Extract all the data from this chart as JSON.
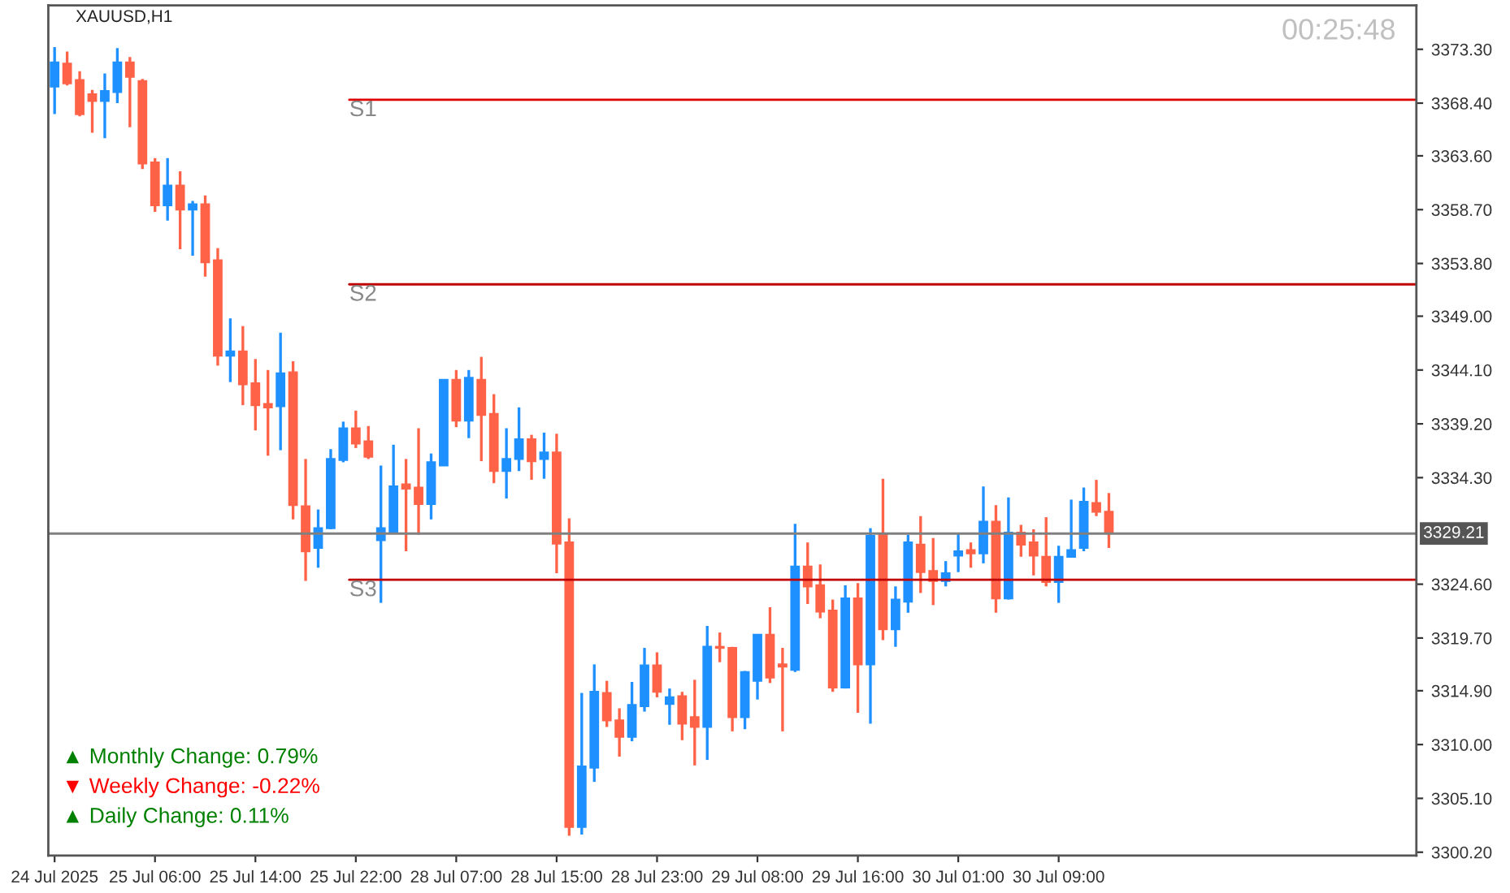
{
  "chart_data": {
    "type": "candlestick",
    "title": "XAUUSD,H1",
    "categories": [
      "24 Jul 2025",
      null,
      null,
      null,
      null,
      null,
      null,
      null,
      "25 Jul 06:00",
      null,
      null,
      null,
      null,
      null,
      null,
      null,
      "25 Jul 14:00",
      null,
      null,
      null,
      null,
      null,
      null,
      null,
      "25 Jul 22:00",
      null,
      null,
      null,
      null,
      null,
      null,
      null,
      "28 Jul 07:00",
      null,
      null,
      null,
      null,
      null,
      null,
      null,
      "28 Jul 15:00",
      null,
      null,
      null,
      null,
      null,
      null,
      null,
      "28 Jul 23:00",
      null,
      null,
      null,
      null,
      null,
      null,
      null,
      "29 Jul 08:00",
      null,
      null,
      null,
      null,
      null,
      null,
      null,
      "29 Jul 16:00",
      null,
      null,
      null,
      null,
      null,
      null,
      null,
      "30 Jul 01:00",
      null,
      null,
      null,
      null,
      null,
      null,
      null,
      "30 Jul 09:00",
      null,
      null,
      null,
      null,
      null,
      null,
      null,
      null,
      null,
      null,
      null,
      null,
      null,
      null,
      null,
      null,
      null,
      null,
      null,
      null,
      null,
      null,
      null,
      null,
      null,
      null,
      null,
      null
    ],
    "ohlc": [
      [
        3369.9,
        3373.5,
        3367.4,
        3372.1
      ],
      [
        3372.0,
        3373.1,
        3370.0,
        3370.2
      ],
      [
        3370.5,
        3371.3,
        3367.2,
        3367.4
      ],
      [
        3369.2,
        3369.6,
        3365.7,
        3368.6
      ],
      [
        3368.6,
        3371.1,
        3365.2,
        3369.5
      ],
      [
        3369.4,
        3373.4,
        3368.4,
        3372.1
      ],
      [
        3372.1,
        3372.6,
        3366.2,
        3370.8
      ],
      [
        3370.4,
        3370.6,
        3362.4,
        3362.9
      ],
      [
        3363.0,
        3363.4,
        3358.5,
        3359.1
      ],
      [
        3359.1,
        3363.4,
        3357.7,
        3360.9
      ],
      [
        3360.9,
        3362.2,
        3355.1,
        3358.7
      ],
      [
        3358.7,
        3359.5,
        3354.5,
        3359.2
      ],
      [
        3359.2,
        3360.0,
        3352.6,
        3353.9
      ],
      [
        3354.1,
        3355.2,
        3344.5,
        3345.4
      ],
      [
        3345.4,
        3348.8,
        3343.0,
        3345.8
      ],
      [
        3345.8,
        3348.1,
        3340.9,
        3342.8
      ],
      [
        3342.9,
        3345.1,
        3338.6,
        3340.9
      ],
      [
        3341.0,
        3344.1,
        3336.3,
        3340.7
      ],
      [
        3340.8,
        3347.5,
        3336.8,
        3343.8
      ],
      [
        3343.9,
        3344.9,
        3330.5,
        3331.8
      ],
      [
        3331.7,
        3336.0,
        3324.9,
        3327.6
      ],
      [
        3327.9,
        3331.4,
        3326.1,
        3329.7
      ],
      [
        3329.7,
        3336.9,
        3329.6,
        3336.0
      ],
      [
        3335.9,
        3339.4,
        3335.7,
        3338.8
      ],
      [
        3338.8,
        3340.4,
        3337.0,
        3337.4
      ],
      [
        3337.6,
        3339.0,
        3336.0,
        3336.2
      ],
      [
        3328.6,
        3335.4,
        3322.9,
        3329.7
      ],
      [
        3329.3,
        3337.3,
        3329.3,
        3333.5
      ],
      [
        3333.7,
        3336.0,
        3327.6,
        3333.3
      ],
      [
        3333.4,
        3338.8,
        3329.1,
        3331.9
      ],
      [
        3331.9,
        3336.5,
        3330.5,
        3335.7
      ],
      [
        3335.4,
        3343.2,
        3335.4,
        3343.2
      ],
      [
        3343.2,
        3344.1,
        3338.9,
        3339.5
      ],
      [
        3339.5,
        3344.1,
        3337.9,
        3343.4
      ],
      [
        3343.2,
        3345.3,
        3335.8,
        3340.0
      ],
      [
        3340.1,
        3341.9,
        3333.8,
        3334.9
      ],
      [
        3334.9,
        3338.8,
        3332.4,
        3336.0
      ],
      [
        3336.0,
        3340.7,
        3334.9,
        3337.8
      ],
      [
        3337.8,
        3338.2,
        3334.1,
        3335.8
      ],
      [
        3336.0,
        3338.4,
        3334.2,
        3336.6
      ],
      [
        3336.6,
        3338.3,
        3325.6,
        3328.3
      ],
      [
        3328.4,
        3330.6,
        3301.7,
        3302.5
      ],
      [
        3302.5,
        3314.7,
        3301.8,
        3308.0
      ],
      [
        3307.9,
        3317.3,
        3306.6,
        3314.8
      ],
      [
        3314.7,
        3315.8,
        3311.6,
        3312.2
      ],
      [
        3312.2,
        3313.3,
        3308.9,
        3310.7
      ],
      [
        3310.7,
        3315.7,
        3310.3,
        3313.6
      ],
      [
        3313.5,
        3318.8,
        3313.0,
        3317.2
      ],
      [
        3317.2,
        3318.4,
        3314.3,
        3314.8
      ],
      [
        3313.7,
        3315.1,
        3311.8,
        3314.3
      ],
      [
        3314.4,
        3314.8,
        3310.4,
        3311.9
      ],
      [
        3312.5,
        3315.9,
        3308.1,
        3311.6
      ],
      [
        3311.6,
        3320.8,
        3308.6,
        3318.9
      ],
      [
        3318.9,
        3320.2,
        3317.5,
        3318.8
      ],
      [
        3318.8,
        3318.9,
        3311.2,
        3312.5
      ],
      [
        3312.5,
        3316.7,
        3311.4,
        3316.6
      ],
      [
        3315.8,
        3320.0,
        3314.1,
        3320.0
      ],
      [
        3320.0,
        3322.5,
        3315.6,
        3316.1
      ],
      [
        3317.3,
        3318.8,
        3311.2,
        3317.1
      ],
      [
        3316.8,
        3330.1,
        3316.6,
        3326.2
      ],
      [
        3326.2,
        3328.4,
        3322.8,
        3324.4
      ],
      [
        3324.5,
        3326.4,
        3321.5,
        3322.1
      ],
      [
        3322.2,
        3323.2,
        3314.8,
        3315.2
      ],
      [
        3315.2,
        3324.5,
        3315.1,
        3323.3
      ],
      [
        3323.3,
        3324.7,
        3312.9,
        3317.3
      ],
      [
        3317.3,
        3329.7,
        3311.9,
        3329.0
      ],
      [
        3329.2,
        3334.2,
        3319.5,
        3320.5
      ],
      [
        3320.5,
        3324.4,
        3318.9,
        3323.2
      ],
      [
        3323.0,
        3329.1,
        3322.0,
        3328.4
      ],
      [
        3328.2,
        3330.8,
        3323.8,
        3325.7
      ],
      [
        3325.8,
        3328.8,
        3322.7,
        3324.9
      ],
      [
        3324.9,
        3326.7,
        3324.4,
        3325.6
      ],
      [
        3327.2,
        3329.2,
        3325.7,
        3327.6
      ],
      [
        3327.7,
        3328.4,
        3326.1,
        3327.4
      ],
      [
        3327.4,
        3333.5,
        3326.5,
        3330.3
      ],
      [
        3330.3,
        3331.8,
        3322.0,
        3323.3
      ],
      [
        3323.3,
        3332.5,
        3323.2,
        3329.3
      ],
      [
        3329.3,
        3330.0,
        3327.1,
        3328.2
      ],
      [
        3328.4,
        3329.6,
        3325.4,
        3327.2
      ],
      [
        3327.1,
        3330.7,
        3324.4,
        3324.8
      ],
      [
        3324.8,
        3328.1,
        3322.9,
        3327.1
      ],
      [
        3327.1,
        3332.3,
        3327.1,
        3327.7
      ],
      [
        3327.9,
        3333.4,
        3327.6,
        3332.1
      ],
      [
        3332.0,
        3334.1,
        3330.8,
        3331.2
      ],
      [
        3331.2,
        3332.9,
        3327.9,
        3329.21
      ],
      null,
      null,
      null,
      null,
      null,
      null,
      null,
      null,
      null,
      null,
      null,
      null,
      null,
      null,
      null,
      null,
      null,
      null,
      null,
      null,
      null,
      null,
      null,
      null
    ],
    "ylim": [
      3299.9,
      3377.3
    ],
    "yticks": [
      {
        "value": 3300.2,
        "label": "3300.20"
      },
      {
        "value": 3305.1,
        "label": "3305.10"
      },
      {
        "value": 3310.0,
        "label": "3310.00"
      },
      {
        "value": 3314.9,
        "label": "3314.90"
      },
      {
        "value": 3319.7,
        "label": "3319.70"
      },
      {
        "value": 3324.6,
        "label": "3324.60"
      },
      {
        "value": 3334.3,
        "label": "3334.30"
      },
      {
        "value": 3339.2,
        "label": "3339.20"
      },
      {
        "value": 3344.1,
        "label": "3344.10"
      },
      {
        "value": 3349.0,
        "label": "3349.00"
      },
      {
        "value": 3353.8,
        "label": "3353.80"
      },
      {
        "value": 3358.7,
        "label": "3358.70"
      },
      {
        "value": 3363.6,
        "label": "3363.60"
      },
      {
        "value": 3368.4,
        "label": "3368.40"
      },
      {
        "value": 3373.3,
        "label": "3373.30"
      }
    ],
    "ref_lines": [
      {
        "axis": "y",
        "value": 3368.7,
        "label": "S1",
        "color": "#e00000"
      },
      {
        "axis": "y",
        "value": 3351.9,
        "label": "S2",
        "color": "#c00000"
      },
      {
        "axis": "y",
        "value": 3325.0,
        "label": "S3",
        "color": "#c00000"
      },
      {
        "axis": "y",
        "value": 3329.21,
        "label": "3329.21",
        "color": "#808080"
      }
    ],
    "annotations": [
      "00:25:48",
      "▲ Monthly Change: 0.79%",
      "▼ Weekly Change: -0.22%",
      "▲ Daily Change: 0.11%"
    ],
    "grid": false
  }
}
